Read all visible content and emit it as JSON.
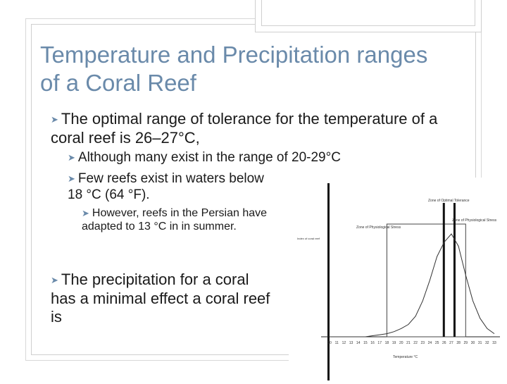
{
  "title": "Temperature and Precipitation ranges of a Coral Reef",
  "bullets": {
    "b1": "The optimal range of tolerance for the temperature of a coral reef is 26–27°C,",
    "b1_1": "Although many exist in the range of 20-29°C",
    "b1_2": "Few reefs exist in waters below 18 °C (64 °F).",
    "b1_2_1": "However, reefs in the Persian have adapted to 13 °C in in summer.",
    "b2": "The precipitation for a coral has a minimal effect a coral reef is"
  },
  "chart_data": {
    "type": "line",
    "xlabel": "Temperature °C",
    "x": [
      10,
      11,
      12,
      13,
      14,
      15,
      16,
      17,
      18,
      19,
      20,
      21,
      22,
      23,
      24,
      25,
      26,
      27,
      28,
      29,
      30,
      31,
      32,
      33
    ],
    "y": [
      0,
      0,
      0,
      0,
      0,
      0,
      1,
      2,
      3,
      5,
      8,
      12,
      20,
      35,
      55,
      78,
      92,
      100,
      88,
      60,
      35,
      18,
      8,
      3
    ],
    "x_tick_labels": [
      "10",
      "11",
      "12",
      "13",
      "14",
      "15",
      "16",
      "17",
      "18",
      "19",
      "20",
      "21",
      "22",
      "23",
      "24",
      "25",
      "26",
      "27",
      "28",
      "29",
      "30",
      "31",
      "32",
      "33"
    ],
    "annotations": {
      "stress_left": "Zone of Physiological Stress",
      "optimal": "Zone of Optimal Tolerance",
      "stress_right": "Zone of Physiological Stress",
      "yaxis_hint": "Index of coral reef"
    },
    "optimal_range": [
      26,
      27
    ],
    "stress_zone_range": [
      18,
      29
    ],
    "grid": false
  }
}
